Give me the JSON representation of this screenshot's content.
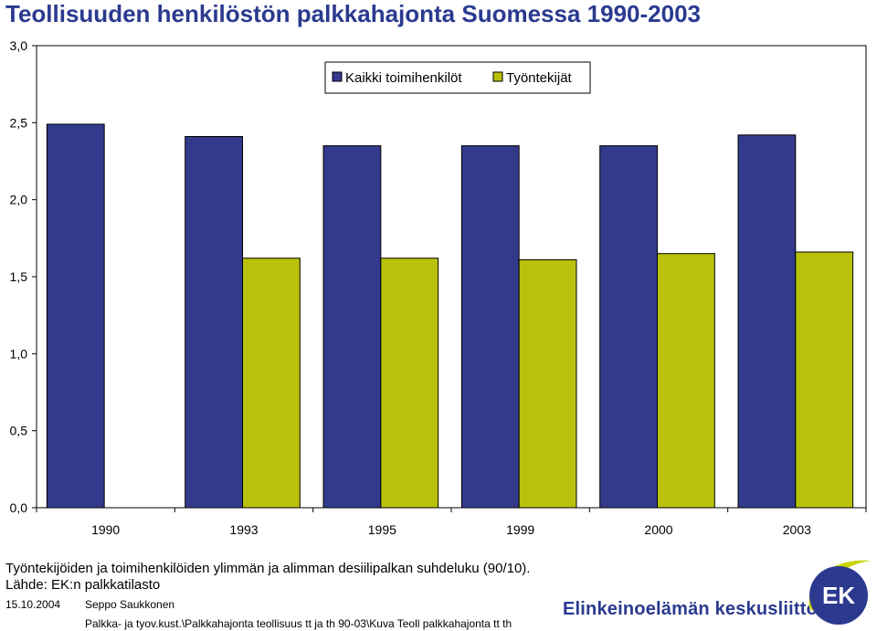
{
  "title": "Teollisuuden henkilöstön palkkahajonta Suomessa 1990-2003",
  "chart_data": {
    "type": "bar",
    "categories": [
      "1990",
      "1993",
      "1995",
      "1999",
      "2000",
      "2003"
    ],
    "series": [
      {
        "name": "Kaikki toimihenkilöt",
        "color": "#333a8c",
        "values": [
          2.49,
          2.41,
          2.35,
          2.35,
          2.35,
          2.42
        ]
      },
      {
        "name": "Työntekijät",
        "color": "#b8c20a",
        "values": [
          null,
          1.62,
          1.62,
          1.61,
          1.65,
          1.66
        ]
      }
    ],
    "y_ticks": [
      "0,0",
      "0,5",
      "1,0",
      "1,5",
      "2,0",
      "2,5",
      "3,0"
    ],
    "ylim": [
      0,
      3
    ],
    "legend_position": "top-right",
    "grid": false
  },
  "caption": {
    "line1": "Työntekijöiden ja toimihenkilöiden ylimmän ja alimman desiilipalkan suhdeluku (90/10).",
    "line2": "Lähde: EK:n palkkatilasto"
  },
  "footer": {
    "date": "15.10.2004",
    "author": "Seppo Saukkonen",
    "path": "Palkka- ja tyov.kust.\\Palkkahajonta teollisuus tt ja th 90-03\\Kuva Teoll palkkahajonta tt th"
  },
  "brand": {
    "name": "Elinkeinoelämän keskusliitto",
    "logo_text": "EK",
    "color": "#2b3a8f",
    "accent": "#c9d400"
  }
}
